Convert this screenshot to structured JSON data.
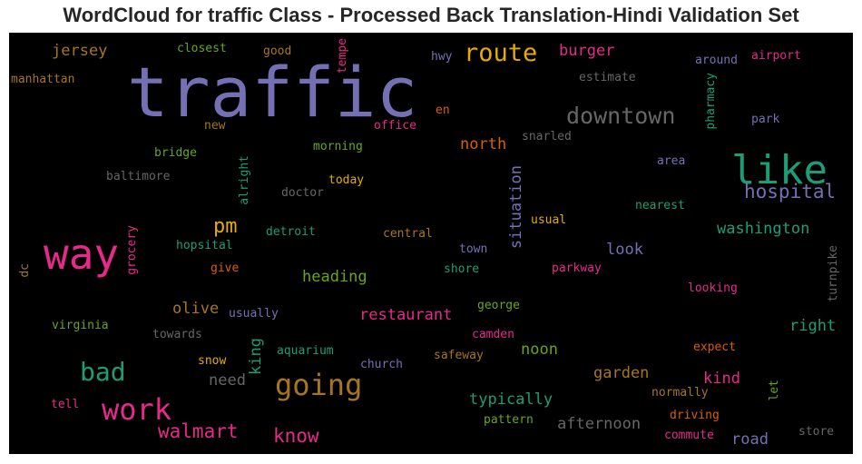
{
  "chart_data": {
    "type": "wordcloud",
    "title": "WordCloud for traffic Class - Processed Back Translation-Hindi Validation Set",
    "background": "#000000",
    "words": [
      {
        "text": "traffic",
        "weight": 1.0,
        "color": "#7570b3",
        "vertical": false
      },
      {
        "text": "way",
        "weight": 0.62,
        "color": "#e7298a",
        "vertical": false
      },
      {
        "text": "like",
        "weight": 0.56,
        "color": "#1b9e77",
        "vertical": false
      },
      {
        "text": "route",
        "weight": 0.36,
        "color": "#e6ab02",
        "vertical": false
      },
      {
        "text": "downtown",
        "weight": 0.34,
        "color": "#666666",
        "vertical": false
      },
      {
        "text": "going",
        "weight": 0.4,
        "color": "#a6761d",
        "vertical": false
      },
      {
        "text": "work",
        "weight": 0.4,
        "color": "#e7298a",
        "vertical": false
      },
      {
        "text": "bad",
        "weight": 0.36,
        "color": "#1b9e77",
        "vertical": false
      },
      {
        "text": "hospital",
        "weight": 0.26,
        "color": "#7570b3",
        "vertical": false
      },
      {
        "text": "walmart",
        "weight": 0.28,
        "color": "#e7298a",
        "vertical": false
      },
      {
        "text": "pm",
        "weight": 0.28,
        "color": "#e6ab02",
        "vertical": false
      },
      {
        "text": "washington",
        "weight": 0.22,
        "color": "#1b9e77",
        "vertical": false
      },
      {
        "text": "jersey",
        "weight": 0.22,
        "color": "#a6761d",
        "vertical": false
      },
      {
        "text": "burger",
        "weight": 0.22,
        "color": "#e7298a",
        "vertical": false
      },
      {
        "text": "north",
        "weight": 0.22,
        "color": "#d95f02",
        "vertical": false
      },
      {
        "text": "situation",
        "weight": 0.22,
        "color": "#7570b3",
        "vertical": true
      },
      {
        "text": "heading",
        "weight": 0.22,
        "color": "#66a61e",
        "vertical": false
      },
      {
        "text": "restaurant",
        "weight": 0.22,
        "color": "#e7298a",
        "vertical": false
      },
      {
        "text": "olive",
        "weight": 0.22,
        "color": "#a6761d",
        "vertical": false
      },
      {
        "text": "know",
        "weight": 0.24,
        "color": "#e7298a",
        "vertical": false
      },
      {
        "text": "look",
        "weight": 0.22,
        "color": "#7570b3",
        "vertical": false
      },
      {
        "text": "right",
        "weight": 0.22,
        "color": "#1b9e77",
        "vertical": false
      },
      {
        "text": "king",
        "weight": 0.22,
        "color": "#1b9e77",
        "vertical": true
      },
      {
        "text": "need",
        "weight": 0.22,
        "color": "#666666",
        "vertical": false
      },
      {
        "text": "noon",
        "weight": 0.22,
        "color": "#66a61e",
        "vertical": false
      },
      {
        "text": "garden",
        "weight": 0.22,
        "color": "#a6761d",
        "vertical": false
      },
      {
        "text": "kind",
        "weight": 0.22,
        "color": "#e7298a",
        "vertical": false
      },
      {
        "text": "typically",
        "weight": 0.22,
        "color": "#1b9e77",
        "vertical": false
      },
      {
        "text": "afternoon",
        "weight": 0.22,
        "color": "#666666",
        "vertical": false
      },
      {
        "text": "road",
        "weight": 0.22,
        "color": "#7570b3",
        "vertical": false
      },
      {
        "text": "closest",
        "weight": 0.14,
        "color": "#66a61e",
        "vertical": false
      },
      {
        "text": "good",
        "weight": 0.14,
        "color": "#a6761d",
        "vertical": false
      },
      {
        "text": "tempe",
        "weight": 0.14,
        "color": "#e7298a",
        "vertical": true
      },
      {
        "text": "hwy",
        "weight": 0.14,
        "color": "#7570b3",
        "vertical": false
      },
      {
        "text": "around",
        "weight": 0.14,
        "color": "#7570b3",
        "vertical": false
      },
      {
        "text": "airport",
        "weight": 0.14,
        "color": "#e7298a",
        "vertical": false
      },
      {
        "text": "manhattan",
        "weight": 0.14,
        "color": "#a6761d",
        "vertical": false
      },
      {
        "text": "estimate",
        "weight": 0.14,
        "color": "#666666",
        "vertical": false
      },
      {
        "text": "pharmacy",
        "weight": 0.14,
        "color": "#1b9e77",
        "vertical": true
      },
      {
        "text": "en",
        "weight": 0.14,
        "color": "#d95f02",
        "vertical": false
      },
      {
        "text": "new",
        "weight": 0.14,
        "color": "#a6761d",
        "vertical": false
      },
      {
        "text": "office",
        "weight": 0.14,
        "color": "#e7298a",
        "vertical": false
      },
      {
        "text": "park",
        "weight": 0.14,
        "color": "#7570b3",
        "vertical": false
      },
      {
        "text": "snarled",
        "weight": 0.14,
        "color": "#666666",
        "vertical": false
      },
      {
        "text": "bridge",
        "weight": 0.14,
        "color": "#66a61e",
        "vertical": false
      },
      {
        "text": "morning",
        "weight": 0.14,
        "color": "#66a61e",
        "vertical": false
      },
      {
        "text": "area",
        "weight": 0.14,
        "color": "#7570b3",
        "vertical": false
      },
      {
        "text": "baltimore",
        "weight": 0.14,
        "color": "#666666",
        "vertical": false
      },
      {
        "text": "alright",
        "weight": 0.14,
        "color": "#1b9e77",
        "vertical": true
      },
      {
        "text": "today",
        "weight": 0.14,
        "color": "#e6ab02",
        "vertical": false
      },
      {
        "text": "doctor",
        "weight": 0.14,
        "color": "#666666",
        "vertical": false
      },
      {
        "text": "nearest",
        "weight": 0.14,
        "color": "#1b9e77",
        "vertical": false
      },
      {
        "text": "detroit",
        "weight": 0.14,
        "color": "#1b9e77",
        "vertical": false
      },
      {
        "text": "central",
        "weight": 0.14,
        "color": "#a6761d",
        "vertical": false
      },
      {
        "text": "usual",
        "weight": 0.14,
        "color": "#e6ab02",
        "vertical": false
      },
      {
        "text": "hopsital",
        "weight": 0.14,
        "color": "#1b9e77",
        "vertical": false
      },
      {
        "text": "grocery",
        "weight": 0.14,
        "color": "#e7298a",
        "vertical": true
      },
      {
        "text": "town",
        "weight": 0.14,
        "color": "#7570b3",
        "vertical": false
      },
      {
        "text": "turnpike",
        "weight": 0.14,
        "color": "#666666",
        "vertical": true
      },
      {
        "text": "dc",
        "weight": 0.14,
        "color": "#a6761d",
        "vertical": true
      },
      {
        "text": "give",
        "weight": 0.14,
        "color": "#d95f02",
        "vertical": false
      },
      {
        "text": "shore",
        "weight": 0.14,
        "color": "#1b9e77",
        "vertical": false
      },
      {
        "text": "parkway",
        "weight": 0.14,
        "color": "#e7298a",
        "vertical": false
      },
      {
        "text": "looking",
        "weight": 0.14,
        "color": "#e7298a",
        "vertical": false
      },
      {
        "text": "george",
        "weight": 0.14,
        "color": "#66a61e",
        "vertical": false
      },
      {
        "text": "usually",
        "weight": 0.14,
        "color": "#7570b3",
        "vertical": false
      },
      {
        "text": "virginia",
        "weight": 0.14,
        "color": "#66a61e",
        "vertical": false
      },
      {
        "text": "towards",
        "weight": 0.14,
        "color": "#666666",
        "vertical": false
      },
      {
        "text": "camden",
        "weight": 0.14,
        "color": "#e7298a",
        "vertical": false
      },
      {
        "text": "aquarium",
        "weight": 0.14,
        "color": "#1b9e77",
        "vertical": false
      },
      {
        "text": "expect",
        "weight": 0.14,
        "color": "#d95f02",
        "vertical": false
      },
      {
        "text": "snow",
        "weight": 0.14,
        "color": "#e6ab02",
        "vertical": false
      },
      {
        "text": "safeway",
        "weight": 0.14,
        "color": "#a6761d",
        "vertical": false
      },
      {
        "text": "church",
        "weight": 0.14,
        "color": "#7570b3",
        "vertical": false
      },
      {
        "text": "let",
        "weight": 0.14,
        "color": "#66a61e",
        "vertical": true
      },
      {
        "text": "tell",
        "weight": 0.14,
        "color": "#e7298a",
        "vertical": false
      },
      {
        "text": "normally",
        "weight": 0.14,
        "color": "#a6761d",
        "vertical": false
      },
      {
        "text": "pattern",
        "weight": 0.14,
        "color": "#66a61e",
        "vertical": false
      },
      {
        "text": "driving",
        "weight": 0.14,
        "color": "#d95f02",
        "vertical": false
      },
      {
        "text": "commute",
        "weight": 0.14,
        "color": "#e7298a",
        "vertical": false
      },
      {
        "text": "store",
        "weight": 0.14,
        "color": "#666666",
        "vertical": false
      }
    ]
  }
}
